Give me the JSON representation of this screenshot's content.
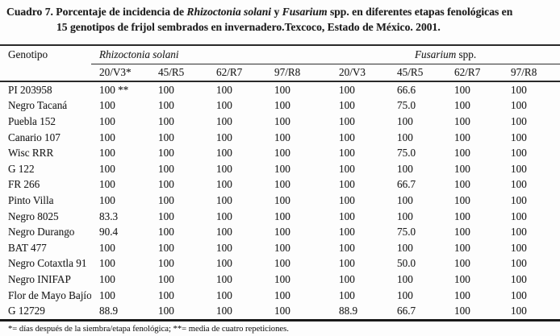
{
  "title": {
    "line1_segments": [
      {
        "text": "Cuadro 7. Porcentaje de incidencia de ",
        "italic": false
      },
      {
        "text": "Rhizoctonia solani",
        "italic": true
      },
      {
        "text": " y ",
        "italic": false
      },
      {
        "text": "Fusarium",
        "italic": true
      },
      {
        "text": " spp. en diferentes etapas fenológicas en",
        "italic": false
      }
    ],
    "line2": "15 genotipos de frijol sembrados en invernadero.Texcoco, Estado de México. 2001."
  },
  "table": {
    "genotype_header": "Genotipo",
    "groups": [
      {
        "italic_text": "Rhizoctonia solani",
        "roman_text": ""
      },
      {
        "italic_text": "Fusarium",
        "roman_text": " spp."
      }
    ],
    "subheaders": [
      "20/V3*",
      "45/R5",
      "62/R7",
      "97/R8",
      "20/V3",
      "45/R5",
      "62/R7",
      "97/R8"
    ],
    "rows": [
      {
        "genotype": "PI 203958",
        "values": [
          "100 **",
          "100",
          "100",
          "100",
          "100",
          "66.6",
          "100",
          "100"
        ]
      },
      {
        "genotype": "Negro Tacaná",
        "values": [
          "100",
          "100",
          "100",
          "100",
          "100",
          "75.0",
          "100",
          "100"
        ]
      },
      {
        "genotype": "Puebla 152",
        "values": [
          "100",
          "100",
          "100",
          "100",
          "100",
          "100",
          "100",
          "100"
        ]
      },
      {
        "genotype": "Canario 107",
        "values": [
          "100",
          "100",
          "100",
          "100",
          "100",
          "100",
          "100",
          "100"
        ]
      },
      {
        "genotype": "Wisc RRR",
        "values": [
          "100",
          "100",
          "100",
          "100",
          "100",
          "75.0",
          "100",
          "100"
        ]
      },
      {
        "genotype": "G 122",
        "values": [
          "100",
          "100",
          "100",
          "100",
          "100",
          "100",
          "100",
          "100"
        ]
      },
      {
        "genotype": "FR 266",
        "values": [
          "100",
          "100",
          "100",
          "100",
          "100",
          "66.7",
          "100",
          "100"
        ]
      },
      {
        "genotype": "Pinto Villa",
        "values": [
          "100",
          "100",
          "100",
          "100",
          "100",
          "100",
          "100",
          "100"
        ]
      },
      {
        "genotype": "Negro 8025",
        "values": [
          "83.3",
          "100",
          "100",
          "100",
          "100",
          "100",
          "100",
          "100"
        ]
      },
      {
        "genotype": "Negro Durango",
        "values": [
          "90.4",
          "100",
          "100",
          "100",
          "100",
          "75.0",
          "100",
          "100"
        ]
      },
      {
        "genotype": "BAT 477",
        "values": [
          "100",
          "100",
          "100",
          "100",
          "100",
          "100",
          "100",
          "100"
        ]
      },
      {
        "genotype": "Negro Cotaxtla 91",
        "values": [
          "100",
          "100",
          "100",
          "100",
          "100",
          "50.0",
          "100",
          "100"
        ]
      },
      {
        "genotype": "Negro INIFAP",
        "values": [
          "100",
          "100",
          "100",
          "100",
          "100",
          "100",
          "100",
          "100"
        ]
      },
      {
        "genotype": "Flor de Mayo Bajío",
        "values": [
          "100",
          "100",
          "100",
          "100",
          "100",
          "100",
          "100",
          "100"
        ]
      },
      {
        "genotype": "G 12729",
        "values": [
          "88.9",
          "100",
          "100",
          "100",
          "88.9",
          "66.7",
          "100",
          "100"
        ]
      }
    ],
    "footnote": "*= días después de la siembra/etapa fenológica; **= media de cuatro repeticiones."
  }
}
